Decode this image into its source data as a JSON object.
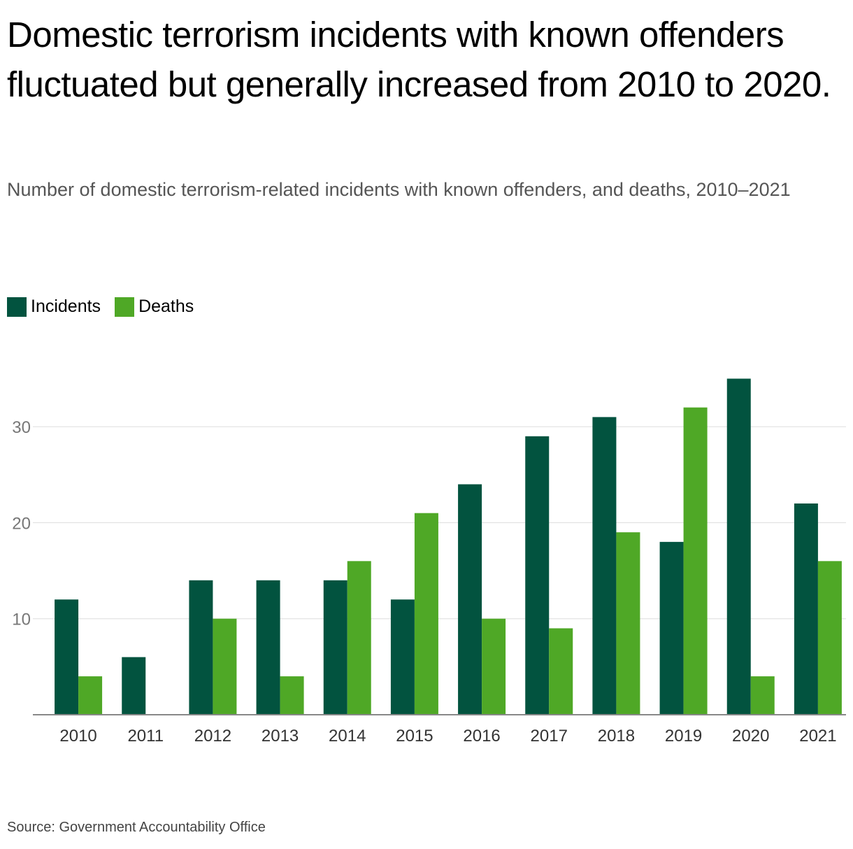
{
  "title": "Domestic terrorism incidents with known offenders fluctuated but generally increased from 2010 to 2020.",
  "subtitle": "Number of domestic terrorism-related incidents with known offenders, and deaths, 2010–2021",
  "source": "Source: Government Accountability Office",
  "colors": {
    "incidents": "#02533f",
    "deaths": "#4fa826",
    "grid": "#dddddd",
    "axis": "#888888"
  },
  "chart_data": {
    "type": "bar",
    "title": "Domestic terrorism incidents with known offenders fluctuated but generally increased from 2010 to 2020.",
    "xlabel": "",
    "ylabel": "",
    "categories": [
      "2010",
      "2011",
      "2012",
      "2013",
      "2014",
      "2015",
      "2016",
      "2017",
      "2018",
      "2019",
      "2020",
      "2021"
    ],
    "series": [
      {
        "name": "Incidents",
        "values": [
          12,
          6,
          14,
          14,
          14,
          12,
          24,
          29,
          31,
          18,
          35,
          22
        ]
      },
      {
        "name": "Deaths",
        "values": [
          4,
          0,
          10,
          4,
          16,
          21,
          10,
          9,
          19,
          32,
          4,
          16
        ]
      }
    ],
    "yticks": [
      10,
      20,
      30
    ],
    "ylim": [
      0,
      36
    ],
    "grid": true,
    "legend_position": "top-left"
  }
}
